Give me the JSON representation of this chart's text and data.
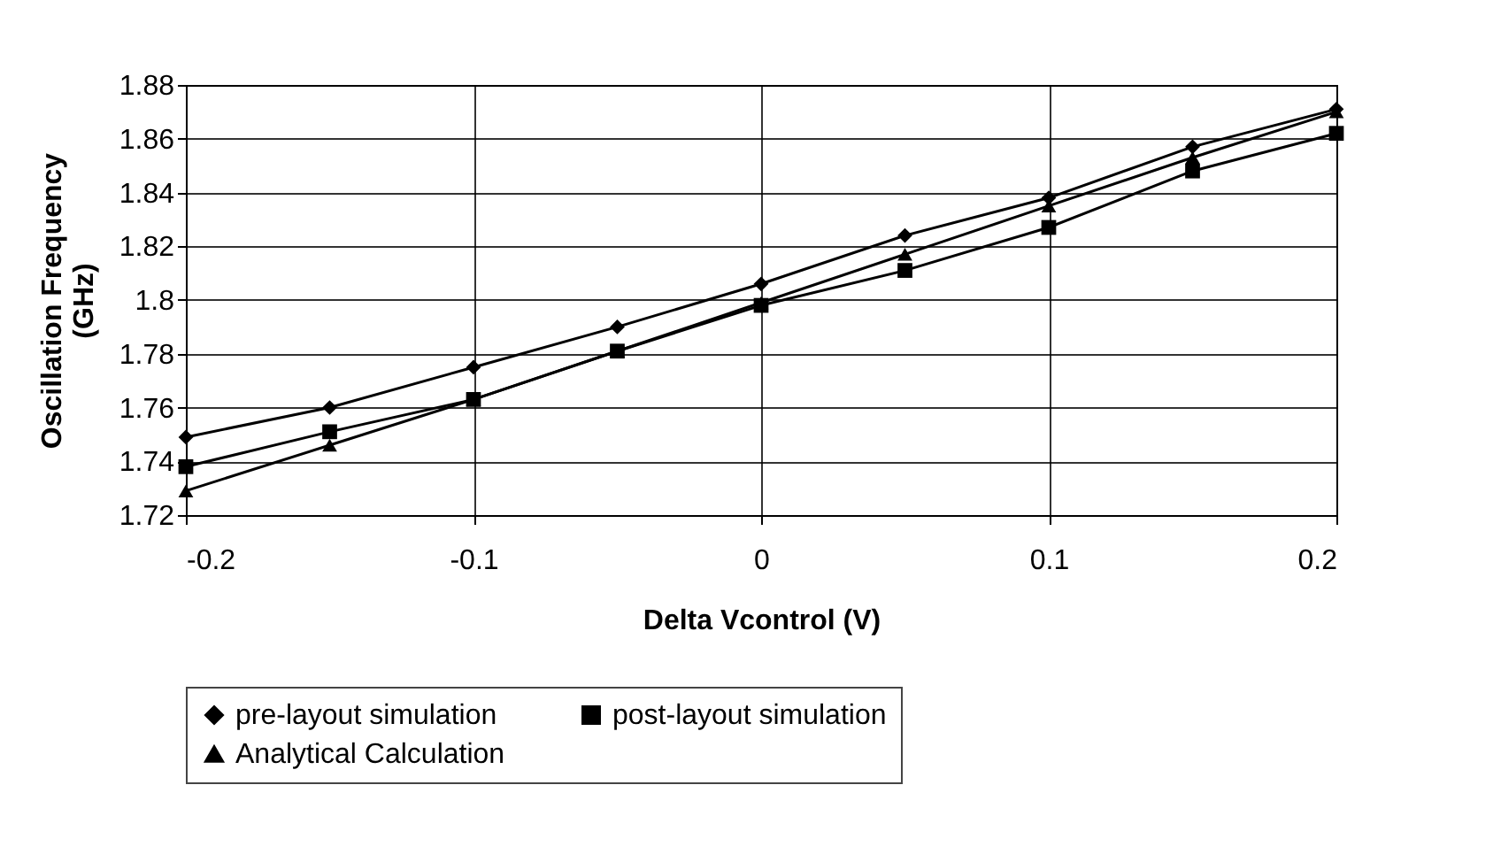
{
  "chart_data": {
    "type": "line",
    "xlabel": "Delta Vcontrol (V)",
    "ylabel": "Oscillation Frequency (GHz)",
    "x": [
      -0.2,
      -0.15,
      -0.1,
      -0.05,
      0,
      0.05,
      0.1,
      0.15,
      0.2
    ],
    "series": [
      {
        "name": "pre-layout simulation",
        "color": "#000000",
        "marker": "diamond",
        "values": [
          1.749,
          1.76,
          1.775,
          1.79,
          1.806,
          1.824,
          1.838,
          1.857,
          1.871
        ]
      },
      {
        "name": "post-layout simulation",
        "color": "#000000",
        "marker": "square",
        "values": [
          1.738,
          1.751,
          1.763,
          1.781,
          1.798,
          1.811,
          1.827,
          1.848,
          1.862
        ]
      },
      {
        "name": "Analytical Calculation",
        "color": "#000000",
        "marker": "triangle",
        "values": [
          1.729,
          1.746,
          1.763,
          1.781,
          1.799,
          1.817,
          1.835,
          1.853,
          1.87
        ]
      }
    ],
    "xlim": [
      -0.2,
      0.2
    ],
    "xticks": [
      -0.2,
      -0.1,
      0,
      0.1,
      0.2
    ],
    "ylim": [
      1.72,
      1.88
    ],
    "yticks": [
      1.72,
      1.74,
      1.76,
      1.78,
      1.8,
      1.82,
      1.84,
      1.86,
      1.88
    ],
    "grid": true,
    "legend": "bottom",
    "line_style": "solid"
  }
}
